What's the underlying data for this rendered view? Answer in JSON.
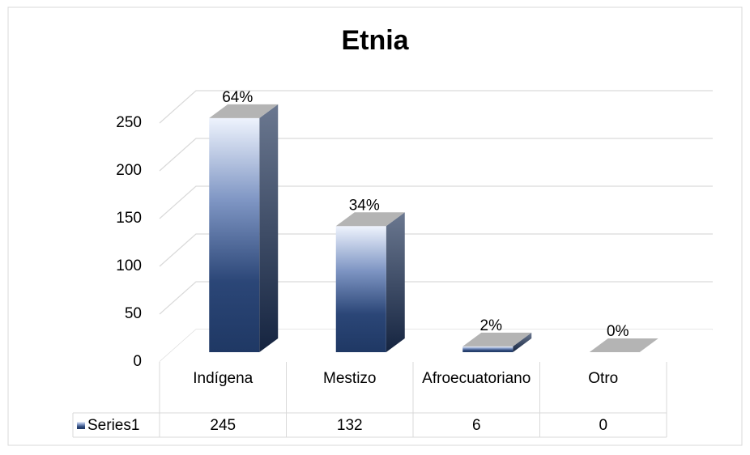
{
  "chart_data": {
    "type": "bar",
    "title": "Etnia",
    "categories": [
      "Indígena",
      "Mestizo",
      "Afroecuatoriano",
      "Otro"
    ],
    "series": [
      {
        "name": "Series1",
        "color": "#1f3864",
        "values": [
          245,
          132,
          6,
          0
        ]
      }
    ],
    "percent_labels": [
      "64%",
      "34%",
      "2%",
      "0%"
    ],
    "ylim": [
      0,
      250
    ],
    "yticks": [
      0,
      50,
      100,
      150,
      200,
      250
    ],
    "grid": true,
    "data_table": true
  }
}
